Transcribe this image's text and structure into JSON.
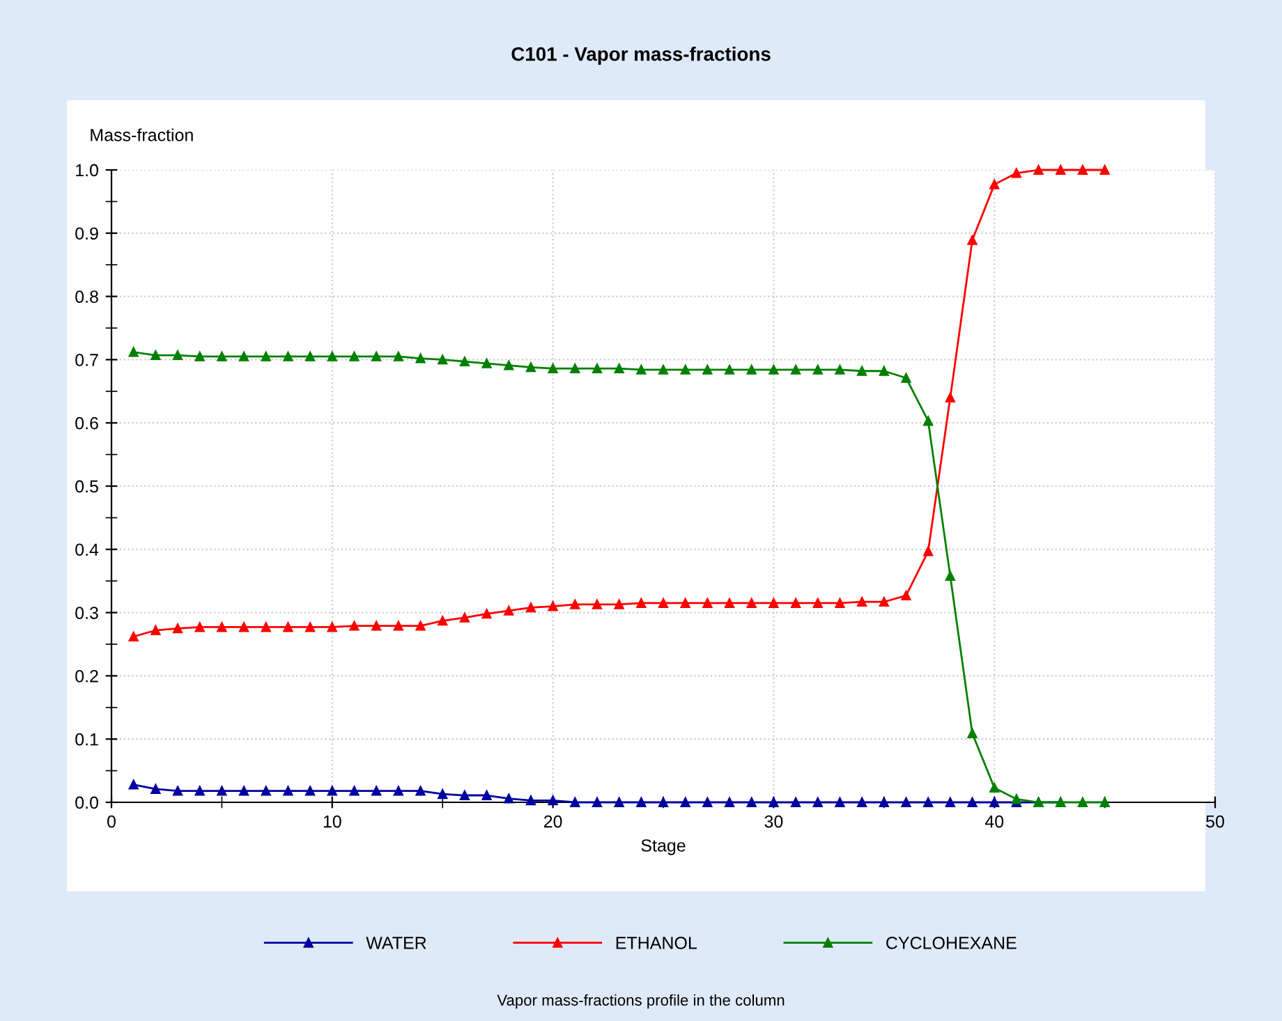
{
  "chart_data": {
    "type": "line",
    "title": "C101 - Vapor mass-fractions",
    "xlabel": "Stage",
    "ylabel": "Mass-fraction",
    "x": [
      1,
      2,
      3,
      4,
      5,
      6,
      7,
      8,
      9,
      10,
      11,
      12,
      13,
      14,
      15,
      16,
      17,
      18,
      19,
      20,
      21,
      22,
      23,
      24,
      25,
      26,
      27,
      28,
      29,
      30,
      31,
      32,
      33,
      34,
      35,
      36,
      37,
      38,
      39,
      40,
      41,
      42,
      43,
      44,
      45
    ],
    "series": [
      {
        "name": "WATER",
        "color": "#0000a0",
        "values": [
          0.028,
          0.021,
          0.018,
          0.018,
          0.018,
          0.018,
          0.018,
          0.018,
          0.018,
          0.018,
          0.018,
          0.018,
          0.018,
          0.018,
          0.013,
          0.011,
          0.011,
          0.006,
          0.003,
          0.003,
          0,
          0,
          0,
          0,
          0,
          0,
          0,
          0,
          0,
          0,
          0,
          0,
          0,
          0,
          0,
          0,
          0,
          0,
          0,
          0,
          0,
          0,
          0,
          null,
          null
        ]
      },
      {
        "name": "ETHANOL",
        "color": "#ff0000",
        "values": [
          0.262,
          0.272,
          0.275,
          0.277,
          0.277,
          0.277,
          0.277,
          0.277,
          0.277,
          0.277,
          0.279,
          0.279,
          0.279,
          0.279,
          0.287,
          0.292,
          0.298,
          0.303,
          0.308,
          0.31,
          0.313,
          0.313,
          0.313,
          0.315,
          0.315,
          0.315,
          0.315,
          0.315,
          0.315,
          0.315,
          0.315,
          0.315,
          0.315,
          0.317,
          0.317,
          0.327,
          0.397,
          0.64,
          0.889,
          0.977,
          0.995,
          1.0,
          1.0,
          1.0,
          1.0
        ]
      },
      {
        "name": "CYCLOHEXANE",
        "color": "#008000",
        "values": [
          0.712,
          0.707,
          0.707,
          0.705,
          0.705,
          0.705,
          0.705,
          0.705,
          0.705,
          0.705,
          0.705,
          0.705,
          0.705,
          0.702,
          0.7,
          0.697,
          0.694,
          0.691,
          0.688,
          0.686,
          0.686,
          0.686,
          0.686,
          0.684,
          0.684,
          0.684,
          0.684,
          0.684,
          0.684,
          0.684,
          0.684,
          0.684,
          0.684,
          0.682,
          0.682,
          0.671,
          0.603,
          0.358,
          0.109,
          0.023,
          0.005,
          0,
          0,
          0,
          0
        ]
      }
    ],
    "xlim": [
      0,
      50
    ],
    "xticks": [
      0,
      10,
      20,
      30,
      40,
      50
    ],
    "ylim": [
      0,
      1.0
    ],
    "yticks": [
      {
        "value": 0,
        "label": "0.0"
      },
      0.1,
      0.2,
      0.3,
      0.4,
      0.5,
      0.6,
      0.7,
      0.8,
      0.9,
      {
        "value": 1.0,
        "label": "1.0"
      }
    ],
    "grid": true,
    "marker": "triangle",
    "line_style": "solid",
    "legend": "bottom",
    "annotations": [
      "Vapor mass-fractions profile in the column"
    ]
  }
}
